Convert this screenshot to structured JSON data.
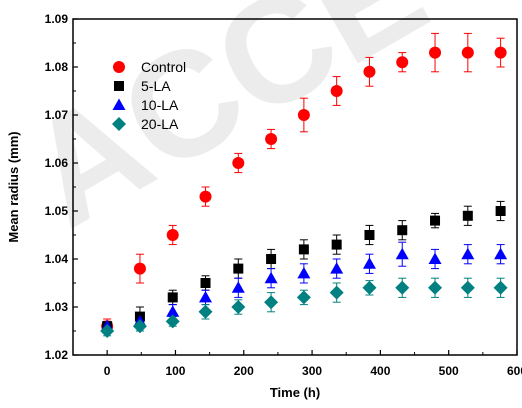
{
  "chart_data": {
    "type": "scatter",
    "xlabel": "Time (h)",
    "ylabel": "Mean radius (mm)",
    "xlim": [
      -50,
      600
    ],
    "ylim": [
      1.02,
      1.09
    ],
    "xticks": [
      0,
      100,
      200,
      300,
      400,
      500,
      600
    ],
    "yticks": [
      1.02,
      1.03,
      1.04,
      1.05,
      1.06,
      1.07,
      1.08,
      1.09
    ],
    "ytick_labels": [
      "1.02",
      "1.03",
      "1.04",
      "1.05",
      "1.06",
      "1.07",
      "1.08",
      "1.09"
    ],
    "legend_position": "top-left",
    "grid": false,
    "watermark": "ACCE",
    "series": [
      {
        "name": "Control",
        "marker": "circle",
        "color": "#ff0000",
        "x": [
          0,
          48,
          96,
          144,
          192,
          240,
          288,
          336,
          384,
          432,
          480,
          528,
          576
        ],
        "y": [
          1.026,
          1.038,
          1.045,
          1.053,
          1.06,
          1.065,
          1.07,
          1.075,
          1.079,
          1.081,
          1.083,
          1.083,
          1.083
        ],
        "err": [
          0.0015,
          0.003,
          0.002,
          0.002,
          0.002,
          0.002,
          0.0035,
          0.003,
          0.003,
          0.002,
          0.004,
          0.004,
          0.003
        ]
      },
      {
        "name": "5-LA",
        "marker": "square",
        "color": "#000000",
        "x": [
          0,
          48,
          96,
          144,
          192,
          240,
          288,
          336,
          384,
          432,
          480,
          528,
          576
        ],
        "y": [
          1.026,
          1.028,
          1.032,
          1.035,
          1.038,
          1.04,
          1.042,
          1.043,
          1.045,
          1.046,
          1.048,
          1.049,
          1.05
        ],
        "err": [
          0.001,
          0.002,
          0.0015,
          0.0015,
          0.002,
          0.002,
          0.002,
          0.002,
          0.002,
          0.002,
          0.0015,
          0.002,
          0.002
        ]
      },
      {
        "name": "10-LA",
        "marker": "triangle",
        "color": "#0000ff",
        "x": [
          0,
          48,
          96,
          144,
          192,
          240,
          288,
          336,
          384,
          432,
          480,
          528,
          576
        ],
        "y": [
          1.026,
          1.027,
          1.029,
          1.032,
          1.034,
          1.036,
          1.037,
          1.038,
          1.039,
          1.041,
          1.04,
          1.041,
          1.041
        ],
        "err": [
          0.001,
          0.001,
          0.0015,
          0.0015,
          0.002,
          0.002,
          0.002,
          0.002,
          0.002,
          0.0025,
          0.002,
          0.002,
          0.002
        ]
      },
      {
        "name": "20-LA",
        "marker": "diamond",
        "color": "#008080",
        "x": [
          0,
          48,
          96,
          144,
          192,
          240,
          288,
          336,
          384,
          432,
          480,
          528,
          576
        ],
        "y": [
          1.025,
          1.026,
          1.027,
          1.029,
          1.03,
          1.031,
          1.032,
          1.033,
          1.034,
          1.034,
          1.034,
          1.034,
          1.034
        ],
        "err": [
          0.001,
          0.001,
          0.001,
          0.0015,
          0.0015,
          0.002,
          0.0015,
          0.002,
          0.0015,
          0.002,
          0.002,
          0.002,
          0.002
        ]
      }
    ]
  }
}
